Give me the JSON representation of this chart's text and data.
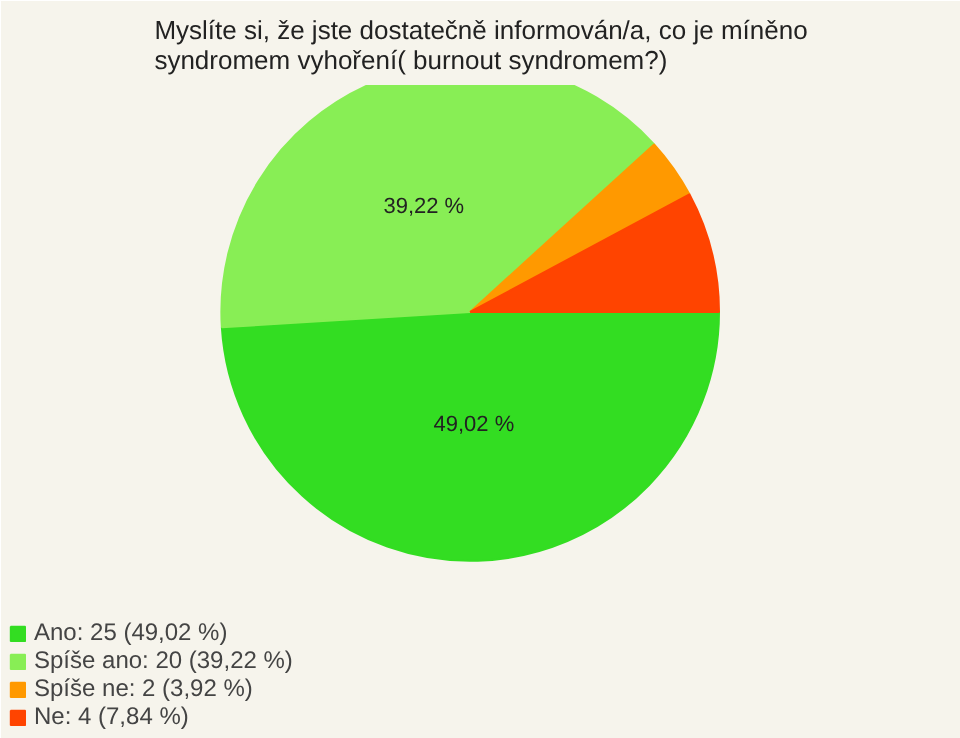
{
  "chart_data": {
    "type": "pie",
    "title": "Myslíte si, že jste dostatečně informován/a, co je míněno syndromem vyhoření( burnout syndromem?)",
    "categories": [
      "Ano: 25 (49,02 %)",
      "Spíše ano: 20 (39,22 %)",
      "Spíše ne: 2 (3,92 %)",
      "Ne: 4 (7,84 %)"
    ],
    "values": [
      49.02,
      39.22,
      3.92,
      7.84
    ],
    "colors": [
      "#33dd22",
      "#88ee55",
      "#ff9900",
      "#ff4400"
    ],
    "value_labels": [
      "49,02 %",
      "39,22 %",
      null,
      null
    ],
    "legend": "bottom left"
  }
}
